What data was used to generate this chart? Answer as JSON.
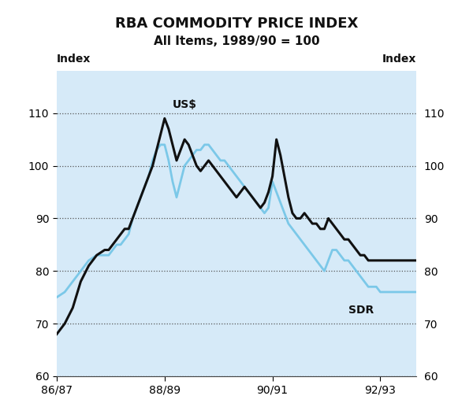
{
  "title": "RBA COMMODITY PRICE INDEX",
  "subtitle": "All Items, 1989/90 = 100",
  "ylabel_left": "Index",
  "ylabel_right": "Index",
  "ylim": [
    60,
    118
  ],
  "yticks": [
    60,
    70,
    80,
    90,
    100,
    110
  ],
  "xtick_positions": [
    0,
    27,
    54,
    81
  ],
  "xtick_labels": [
    "86/87",
    "88/89",
    "90/91",
    "92/93"
  ],
  "title_bg": "#ffffff",
  "plot_bg": "#d6eaf8",
  "us_color": "#111111",
  "sdr_color": "#7bc8e8",
  "us_label": "US$",
  "sdr_label": "SDR",
  "us_x": [
    0,
    2,
    4,
    6,
    8,
    10,
    12,
    13,
    14,
    15,
    16,
    17,
    18,
    19,
    20,
    21,
    22,
    23,
    24,
    25,
    26,
    27,
    28,
    29,
    30,
    31,
    32,
    33,
    34,
    35,
    36,
    37,
    38,
    39,
    40,
    41,
    42,
    43,
    44,
    45,
    46,
    47,
    48,
    49,
    50,
    51,
    52,
    53,
    54,
    55,
    56,
    57,
    58,
    59,
    60,
    61,
    62,
    63,
    64,
    65,
    66,
    67,
    68,
    69,
    70,
    71,
    72,
    73,
    74,
    75,
    76,
    77,
    78,
    79,
    80,
    81,
    82,
    83,
    84,
    85,
    86,
    87,
    88,
    89,
    90
  ],
  "us_y": [
    68,
    70,
    73,
    78,
    81,
    83,
    84,
    84,
    85,
    86,
    87,
    88,
    88,
    90,
    92,
    94,
    96,
    98,
    100,
    103,
    106,
    109,
    107,
    104,
    101,
    103,
    105,
    104,
    102,
    100,
    99,
    100,
    101,
    100,
    99,
    98,
    97,
    96,
    95,
    94,
    95,
    96,
    95,
    94,
    93,
    92,
    93,
    95,
    98,
    105,
    102,
    98,
    94,
    91,
    90,
    90,
    91,
    90,
    89,
    89,
    88,
    88,
    90,
    89,
    88,
    87,
    86,
    86,
    85,
    84,
    83,
    83,
    82,
    82,
    82,
    82,
    82,
    82,
    82,
    82,
    82,
    82,
    82,
    82,
    82
  ],
  "sdr_x": [
    0,
    2,
    4,
    6,
    8,
    10,
    12,
    13,
    14,
    15,
    16,
    17,
    18,
    19,
    20,
    21,
    22,
    23,
    24,
    25,
    26,
    27,
    28,
    29,
    30,
    31,
    32,
    33,
    34,
    35,
    36,
    37,
    38,
    39,
    40,
    41,
    42,
    43,
    44,
    45,
    46,
    47,
    48,
    49,
    50,
    51,
    52,
    53,
    54,
    55,
    56,
    57,
    58,
    59,
    60,
    61,
    62,
    63,
    64,
    65,
    66,
    67,
    68,
    69,
    70,
    71,
    72,
    73,
    74,
    75,
    76,
    77,
    78,
    79,
    80,
    81,
    82,
    83,
    84,
    85,
    86,
    87,
    88,
    89,
    90
  ],
  "sdr_y": [
    75,
    76,
    78,
    80,
    82,
    83,
    83,
    83,
    84,
    85,
    85,
    86,
    87,
    90,
    92,
    94,
    96,
    98,
    101,
    103,
    104,
    104,
    101,
    97,
    94,
    97,
    100,
    101,
    102,
    103,
    103,
    104,
    104,
    103,
    102,
    101,
    101,
    100,
    99,
    98,
    97,
    96,
    95,
    94,
    93,
    92,
    91,
    92,
    97,
    95,
    93,
    91,
    89,
    88,
    87,
    86,
    85,
    84,
    83,
    82,
    81,
    80,
    82,
    84,
    84,
    83,
    82,
    82,
    81,
    80,
    79,
    78,
    77,
    77,
    77,
    76,
    76,
    76,
    76,
    76,
    76,
    76,
    76,
    76,
    76
  ]
}
